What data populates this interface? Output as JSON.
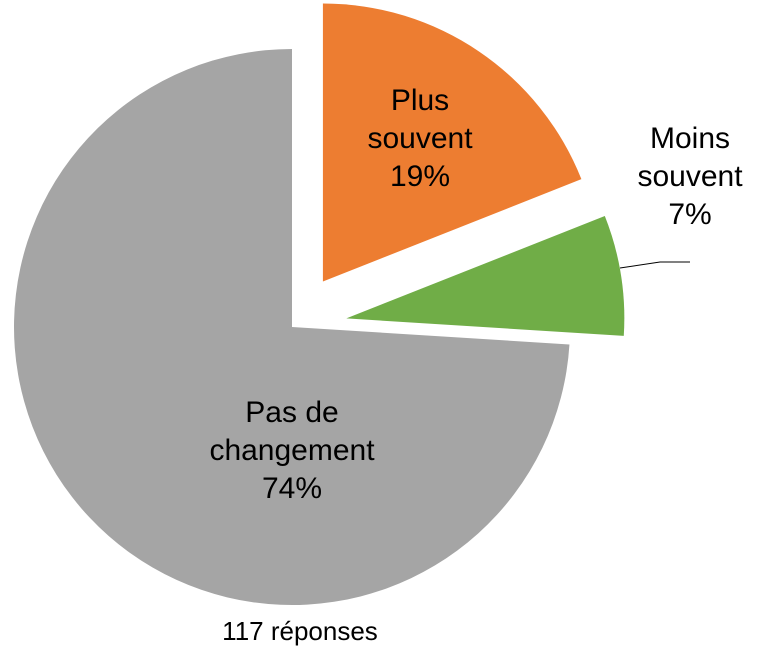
{
  "chart_data": {
    "type": "pie",
    "categories": [
      "Plus souvent",
      "Moins souvent",
      "Pas de changement"
    ],
    "values": [
      19,
      7,
      74
    ],
    "value_labels": [
      "19%",
      "7%",
      "74%"
    ],
    "colors": [
      "#ed7d31",
      "#70ad47",
      "#a5a5a5"
    ],
    "caption": "117 réponses"
  }
}
